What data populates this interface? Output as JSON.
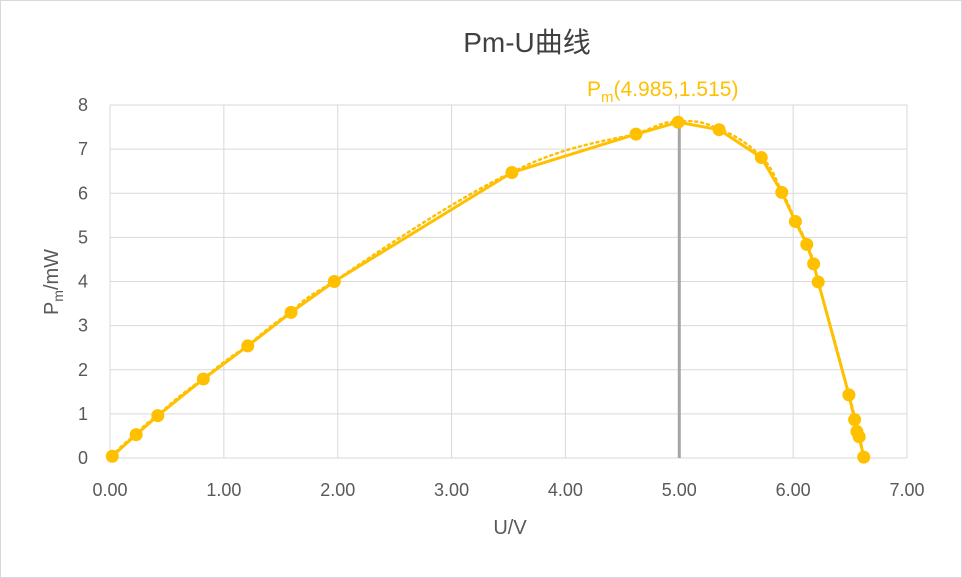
{
  "colors": {
    "series": "#FFC000",
    "grid": "#D9D9D9",
    "marker_line": "#A6A6A6",
    "text": "#595959",
    "title": "#404040",
    "border": "#D9D9D9"
  },
  "chart_data": {
    "type": "scatter",
    "title": "Pm-U曲线",
    "xlabel": {
      "main": "U/V"
    },
    "ylabel": {
      "base": "P",
      "sub": "m",
      "rest": "/mW"
    },
    "xlim": [
      0,
      7
    ],
    "ylim": [
      0,
      8
    ],
    "x_ticks": [
      "0.00",
      "1.00",
      "2.00",
      "3.00",
      "4.00",
      "5.00",
      "6.00",
      "7.00"
    ],
    "y_ticks": [
      "0",
      "1",
      "2",
      "3",
      "4",
      "5",
      "6",
      "7",
      "8"
    ],
    "grid": true,
    "series": [
      {
        "points": [
          [
            0.02,
            0.04
          ],
          [
            0.23,
            0.53
          ],
          [
            0.42,
            0.96
          ],
          [
            0.82,
            1.79
          ],
          [
            1.21,
            2.54
          ],
          [
            1.59,
            3.3
          ],
          [
            1.97,
            4.0
          ],
          [
            3.53,
            6.47
          ],
          [
            4.62,
            7.34
          ],
          [
            4.99,
            7.61
          ],
          [
            5.35,
            7.44
          ],
          [
            5.72,
            6.81
          ],
          [
            5.9,
            6.02
          ],
          [
            6.02,
            5.36
          ],
          [
            6.12,
            4.84
          ],
          [
            6.18,
            4.4
          ],
          [
            6.22,
            3.99
          ],
          [
            6.49,
            1.43
          ],
          [
            6.54,
            0.87
          ],
          [
            6.56,
            0.6
          ],
          [
            6.58,
            0.48
          ],
          [
            6.62,
            0.02
          ]
        ],
        "style": "solid-line-with-markers"
      }
    ],
    "trendline": {
      "style": "dotted",
      "type": "polynomial"
    },
    "vertical_marker": {
      "x": 5.0,
      "y_from": 0,
      "y_to": 7.61
    },
    "annotation": {
      "base": "P",
      "sub": "m",
      "rest": "(4.985,1.515)",
      "anchor_x": 4.985,
      "anchor_y": 7.61
    }
  }
}
